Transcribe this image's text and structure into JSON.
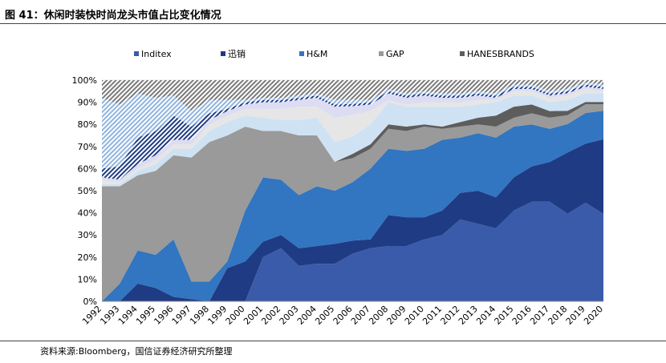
{
  "figure": {
    "title": "图 41：休闲时装快时尚龙头市值占比变化情况",
    "source": "资料来源:Bloomberg，国信证券经济研究所整理"
  },
  "chart_data": {
    "type": "area",
    "stacked": true,
    "percent": true,
    "title": "",
    "xlabel": "",
    "ylabel": "",
    "ylim": [
      0,
      100
    ],
    "x": [
      "1992",
      "1993",
      "1994",
      "1995",
      "1996",
      "1997",
      "1998",
      "1999",
      "2000",
      "2001",
      "2002",
      "2003",
      "2004",
      "2005",
      "2006",
      "2007",
      "2008",
      "2009",
      "2010",
      "2011",
      "2012",
      "2013",
      "2014",
      "2015",
      "2016",
      "2017",
      "2018",
      "2019",
      "2020"
    ],
    "yticks": [
      "0%",
      "10%",
      "20%",
      "30%",
      "40%",
      "50%",
      "60%",
      "70%",
      "80%",
      "90%",
      "100%"
    ],
    "legend_position": "top",
    "series": [
      {
        "name": "Inditex",
        "color": "#3a5ba9",
        "pattern": "solid",
        "values": [
          0,
          0,
          0,
          0,
          0,
          0,
          0,
          0,
          0,
          20,
          24,
          16,
          17,
          17,
          22,
          24,
          25,
          25,
          28,
          30,
          37,
          35,
          33,
          41,
          45,
          45,
          40,
          45,
          40
        ]
      },
      {
        "name": "迅销",
        "color": "#1f3b84",
        "pattern": "solid",
        "values": [
          0,
          0,
          8,
          6,
          2,
          1,
          0,
          15,
          18,
          7,
          6,
          8,
          8,
          9,
          6,
          4,
          14,
          13,
          10,
          11,
          12,
          15,
          14,
          15,
          16,
          18,
          28,
          27,
          34
        ]
      },
      {
        "name": "H&M",
        "color": "#3275c0",
        "pattern": "solid",
        "values": [
          0,
          8,
          15,
          15,
          26,
          8,
          9,
          3,
          23,
          29,
          25,
          24,
          27,
          24,
          27,
          32,
          30,
          30,
          31,
          32,
          25,
          26,
          27,
          23,
          19,
          15,
          13,
          14,
          13
        ]
      },
      {
        "name": "GAP",
        "color": "#9a9a9a",
        "pattern": "solid",
        "values": [
          52,
          44,
          34,
          38,
          38,
          56,
          63,
          57,
          38,
          21,
          22,
          27,
          23,
          13,
          11,
          9,
          9,
          9,
          10,
          5,
          5,
          4,
          5,
          4,
          5,
          5,
          4,
          4,
          3
        ]
      },
      {
        "name": "HANESBRANDS",
        "color": "#5d5d5d",
        "pattern": "solid",
        "values": [
          0,
          0,
          0,
          0,
          0,
          0,
          0,
          0,
          0,
          0,
          0,
          0,
          0,
          0,
          2,
          2,
          2,
          2,
          1,
          1,
          2,
          3,
          5,
          5,
          4,
          3,
          2,
          1,
          1
        ]
      },
      {
        "name": "other-light-blue",
        "color": "#cfe2f3",
        "pattern": "solid",
        "legend": false,
        "values": [
          1,
          1,
          2,
          3,
          3,
          4,
          5,
          6,
          5,
          6,
          5,
          7,
          8,
          9,
          8,
          9,
          10,
          9,
          8,
          9,
          7,
          6,
          6,
          5,
          4,
          4,
          5,
          4,
          4
        ]
      },
      {
        "name": "other-light-gray",
        "color": "#e6e6e6",
        "pattern": "solid",
        "legend": false,
        "values": [
          2,
          1,
          1,
          2,
          2,
          2,
          3,
          3,
          3,
          4,
          5,
          6,
          5,
          11,
          10,
          6,
          1,
          1,
          2,
          2,
          2,
          2,
          1,
          2,
          2,
          2,
          2,
          2,
          1
        ]
      },
      {
        "name": "other-lavender",
        "color": "#dcdcf2",
        "pattern": "solid",
        "legend": false,
        "values": [
          1,
          1,
          2,
          2,
          2,
          2,
          2,
          2,
          2,
          3,
          3,
          3,
          4,
          5,
          4,
          3,
          3,
          3,
          3,
          2,
          2,
          2,
          1,
          1,
          1,
          1,
          1,
          1,
          1
        ]
      },
      {
        "name": "other-navy-hatch",
        "color": "#1f3b84",
        "pattern": "diagonal",
        "legend": false,
        "values": [
          4,
          6,
          12,
          11,
          11,
          6,
          3,
          1,
          1,
          1,
          1,
          1,
          1,
          1,
          1,
          1,
          1,
          1,
          1,
          1,
          1,
          1,
          1,
          1,
          1,
          1,
          1,
          1,
          1
        ]
      },
      {
        "name": "other-lightblue-hatch",
        "color": "#8fb4e0",
        "pattern": "diagonal",
        "legend": false,
        "values": [
          32,
          28,
          20,
          15,
          9,
          7,
          6,
          4,
          1,
          1,
          1,
          1,
          1,
          2,
          2,
          1,
          1,
          1,
          1,
          1,
          1,
          1,
          1,
          1,
          1,
          1,
          1,
          1,
          1
        ]
      },
      {
        "name": "other-gray-hatch",
        "color": "#7a7a7a",
        "pattern": "diagonal",
        "legend": false,
        "values": [
          8,
          11,
          6,
          8,
          7,
          14,
          9,
          9,
          9,
          8,
          8,
          7,
          6,
          9,
          9,
          9,
          4,
          6,
          5,
          6,
          6,
          5,
          6,
          2,
          2,
          5,
          4,
          1,
          2
        ]
      }
    ]
  }
}
